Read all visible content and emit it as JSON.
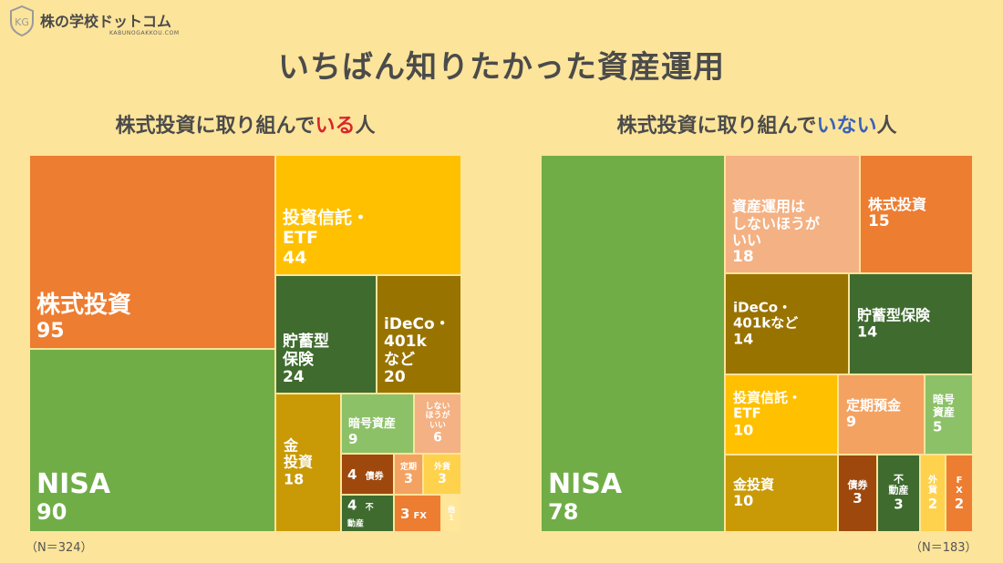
{
  "logo": {
    "badge": "KG",
    "name": "株の学校ドットコム",
    "sub": "KABUNOGAKKOU.COM"
  },
  "title": "いちばん知りたかった資産運用",
  "left_title": {
    "pre": "株式投資に取り組んで",
    "hl": "いる",
    "post": "人"
  },
  "right_title": {
    "pre": "株式投資に取り組んで",
    "hl": "いない",
    "post": "人"
  },
  "left_n": "（N＝324）",
  "right_n": "（N＝183）",
  "colors": {
    "orange": "#ED7D31",
    "green": "#70AD47",
    "gold": "#FFC000",
    "dkgreen": "#3F6B2E",
    "olive": "#997300",
    "mustard": "#C99A06",
    "ltgreen": "#8CC168",
    "salmon": "#F4B183",
    "brown": "#9E480E",
    "ltorange": "#F4A261",
    "yellow": "#FFD24D",
    "pale": "#FFE699"
  },
  "chart_data": [
    {
      "type": "treemap",
      "title": "株式投資に取り組んでいる人",
      "n": 324,
      "categories": [
        "株式投資",
        "NISA",
        "投資信託・ETF",
        "貯蓄型保険",
        "iDeCo・401kなど",
        "金投資",
        "暗号資産",
        "しないほうがいい",
        "債券",
        "定期",
        "外貨",
        "不動産",
        "FX",
        "他"
      ],
      "values": [
        95,
        90,
        44,
        24,
        20,
        18,
        9,
        6,
        4,
        3,
        3,
        4,
        3,
        1
      ]
    },
    {
      "type": "treemap",
      "title": "株式投資に取り組んでいない人",
      "n": 183,
      "categories": [
        "NISA",
        "資産運用はしないほうがいい",
        "株式投資",
        "iDeCo・401kなど",
        "貯蓄型保険",
        "投資信託・ETF",
        "定期預金",
        "暗号資産",
        "金投資",
        "債券",
        "不動産",
        "外貨",
        "FX"
      ],
      "values": [
        78,
        18,
        15,
        14,
        14,
        10,
        9,
        5,
        10,
        3,
        3,
        2,
        2
      ]
    }
  ],
  "left_cells": [
    {
      "name": "cell-kabushiki",
      "label": "株式投資",
      "value": "95",
      "color": "orange"
    },
    {
      "name": "cell-nisa",
      "label": "NISA",
      "value": "90",
      "color": "green"
    },
    {
      "name": "cell-toushin",
      "label": "投資信託・\nETF",
      "value": "44",
      "color": "gold"
    },
    {
      "name": "cell-chochiku",
      "label": "貯蓄型\n保険",
      "value": "24",
      "color": "dkgreen"
    },
    {
      "name": "cell-ideco",
      "label": "iDeCo・\n401k\nなど",
      "value": "20",
      "color": "olive"
    },
    {
      "name": "cell-kin",
      "label": "金\n投資",
      "value": "18",
      "color": "mustard"
    },
    {
      "name": "cell-angou",
      "label": "暗号資産",
      "value": "9",
      "color": "ltgreen"
    },
    {
      "name": "cell-shinai",
      "label": "しない\nほうが\nいい",
      "value": "6",
      "color": "salmon"
    },
    {
      "name": "cell-saiken",
      "label": "債券",
      "value": "4",
      "color": "brown"
    },
    {
      "name": "cell-teiki",
      "label": "定期",
      "value": "3",
      "color": "ltorange"
    },
    {
      "name": "cell-gaika",
      "label": "外貨",
      "value": "3",
      "color": "yellow"
    },
    {
      "name": "cell-fudousan",
      "label": "不\n動産",
      "value": "4",
      "color": "dkgreen"
    },
    {
      "name": "cell-fx",
      "label": "FX",
      "value": "3",
      "color": "orange"
    },
    {
      "name": "cell-hoka",
      "label": "他",
      "value": "1",
      "color": "pale"
    }
  ],
  "right_cells": [
    {
      "name": "cell-nisa",
      "label": "NISA",
      "value": "78",
      "color": "green"
    },
    {
      "name": "cell-shinai",
      "label": "資産運用は\nしないほうが\nいい",
      "value": "18",
      "color": "salmon"
    },
    {
      "name": "cell-kabushiki",
      "label": "株式投資",
      "value": "15",
      "color": "orange"
    },
    {
      "name": "cell-ideco",
      "label": "iDeCo・\n401kなど",
      "value": "14",
      "color": "olive"
    },
    {
      "name": "cell-chochiku",
      "label": "貯蓄型保険",
      "value": "14",
      "color": "dkgreen"
    },
    {
      "name": "cell-toushin",
      "label": "投資信託・\nETF",
      "value": "10",
      "color": "gold"
    },
    {
      "name": "cell-teikiyokin",
      "label": "定期預金",
      "value": "9",
      "color": "ltorange"
    },
    {
      "name": "cell-angou",
      "label": "暗号\n資産",
      "value": "5",
      "color": "ltgreen"
    },
    {
      "name": "cell-kin",
      "label": "金投資",
      "value": "10",
      "color": "mustard"
    },
    {
      "name": "cell-saiken",
      "label": "債券",
      "value": "3",
      "color": "brown"
    },
    {
      "name": "cell-fudousan",
      "label": "不\n動産",
      "value": "3",
      "color": "dkgreen"
    },
    {
      "name": "cell-gaika",
      "label": "外\n貨",
      "value": "2",
      "color": "yellow"
    },
    {
      "name": "cell-fx",
      "label": "F\nX",
      "value": "2",
      "color": "orange"
    }
  ]
}
